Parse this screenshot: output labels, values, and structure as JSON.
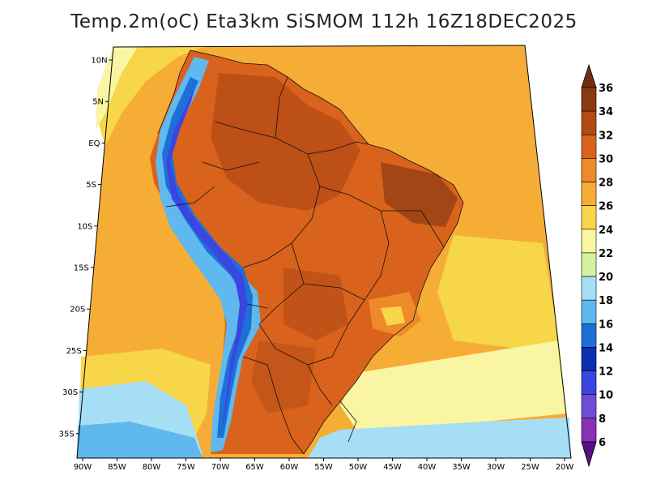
{
  "title": "Temp.2m(oC) Eta3km SiSMOM 112h 16Z18DEC2025",
  "lat_labels": [
    "10N",
    "5N",
    "EQ",
    "5S",
    "10S",
    "15S",
    "20S",
    "25S",
    "30S",
    "35S"
  ],
  "lon_labels": [
    "90W",
    "85W",
    "80W",
    "75W",
    "70W",
    "65W",
    "60W",
    "55W",
    "50W",
    "45W",
    "40W",
    "35W",
    "30W",
    "25W",
    "20W"
  ],
  "colorbar": {
    "labels": [
      "36",
      "34",
      "32",
      "30",
      "28",
      "26",
      "24",
      "22",
      "20",
      "18",
      "16",
      "14",
      "12",
      "10",
      "8",
      "6"
    ],
    "colors": [
      "#6e2f0f",
      "#8a3a12",
      "#b24a16",
      "#d9631c",
      "#ef8a2a",
      "#f6ad36",
      "#f7d64a",
      "#f9f5a2",
      "#d4f2a0",
      "#a6dff5",
      "#5fb8ee",
      "#1e6fd8",
      "#0b2fb0",
      "#3a46e0",
      "#6e4cd6",
      "#8b2fb5",
      "#5a1080"
    ]
  },
  "colors": {
    "ocean_warm": "#f6ad36",
    "ocean_mid": "#f7d64a",
    "ocean_cool": "#f9f5a2",
    "ocean_cold": "#a6dff5",
    "land_hot": "#d9631c",
    "land_very_hot": "#b24a16",
    "andes_cold": "#1e6fd8",
    "andes_very_cold": "#3a46e0"
  }
}
